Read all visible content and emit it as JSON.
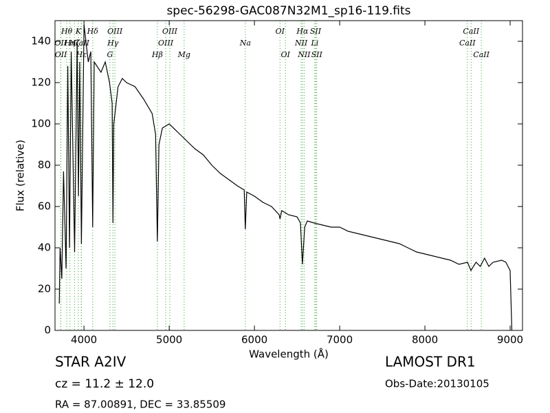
{
  "chart_data": {
    "type": "line",
    "title": "spec-56298-GAC087N32M1_sp16-119.fits",
    "x_label": "Wavelength (Å)",
    "y_label": "Flux (relative)",
    "color": "#000000",
    "line_color": "#2ca02c",
    "xlim": [
      3660,
      9145
    ],
    "ylim": [
      0,
      150
    ],
    "xticks": [
      4000,
      5000,
      6000,
      7000,
      8000,
      9000
    ],
    "yticks": [
      0,
      20,
      40,
      60,
      80,
      100,
      120,
      140
    ],
    "x": [
      3710,
      3720,
      3740,
      3760,
      3790,
      3810,
      3830,
      3850,
      3890,
      3920,
      3935,
      3950,
      3970,
      4000,
      4050,
      4080,
      4102,
      4120,
      4200,
      4250,
      4300,
      4330,
      4340,
      4350,
      4400,
      4450,
      4500,
      4600,
      4700,
      4800,
      4840,
      4861,
      4880,
      4920,
      5000,
      5100,
      5200,
      5300,
      5400,
      5500,
      5600,
      5700,
      5800,
      5880,
      5893,
      5910,
      6000,
      6100,
      6200,
      6290,
      6300,
      6320,
      6400,
      6500,
      6540,
      6563,
      6590,
      6620,
      6700,
      6800,
      6900,
      7000,
      7100,
      7200,
      7300,
      7400,
      7500,
      7600,
      7700,
      7800,
      7900,
      8000,
      8100,
      8200,
      8300,
      8400,
      8500,
      8540,
      8600,
      8650,
      8700,
      8750,
      8800,
      8900,
      8950,
      9000,
      9020
    ],
    "values": [
      13,
      40,
      25,
      77,
      30,
      128,
      40,
      135,
      38,
      140,
      65,
      130,
      42,
      148,
      130,
      135,
      50,
      130,
      125,
      130,
      120,
      110,
      52,
      100,
      118,
      122,
      120,
      118,
      112,
      105,
      95,
      43,
      90,
      98,
      100,
      96,
      92,
      88,
      85,
      80,
      76,
      73,
      70,
      68,
      49,
      67,
      65,
      62,
      60,
      56,
      54,
      58,
      56,
      55,
      52,
      32,
      50,
      53,
      52,
      51,
      50,
      50,
      48,
      47,
      46,
      45,
      44,
      43,
      42,
      40,
      38,
      37,
      36,
      35,
      34,
      32,
      33,
      29,
      33,
      31,
      35,
      31,
      33,
      34,
      33,
      29,
      0
    ],
    "lines": [
      [
        {
          "label": "Hθ",
          "x": 3798
        },
        {
          "label": "K",
          "x": 3934
        },
        {
          "label": "Hδ",
          "x": 4102
        },
        {
          "label": "OIII",
          "x": 4363
        },
        {
          "label": "OIII",
          "x": 5007
        },
        {
          "label": "OI",
          "x": 6300
        },
        {
          "label": "Hα",
          "x": 6563
        },
        {
          "label": "SII",
          "x": 6717
        },
        {
          "label": "CaII",
          "x": 8542
        }
      ],
      [
        {
          "label": "OII",
          "x": 3727
        },
        {
          "label": "Hη",
          "x": 3835
        },
        {
          "label": "Hζ",
          "x": 3889
        },
        {
          "label": "CaII",
          "x": 3968
        },
        {
          "label": "Hγ",
          "x": 4340
        },
        {
          "label": "OIII",
          "x": 4959
        },
        {
          "label": "Na",
          "x": 5893
        },
        {
          "label": "NII",
          "x": 6548
        },
        {
          "label": "Li",
          "x": 6708
        },
        {
          "label": "CaII",
          "x": 8498
        }
      ],
      [
        {
          "label": "OII",
          "x": 3729
        },
        {
          "label": "Hε",
          "x": 3970
        },
        {
          "label": "G",
          "x": 4304
        },
        {
          "label": "Hβ",
          "x": 4861
        },
        {
          "label": "Mg",
          "x": 5175
        },
        {
          "label": "OI",
          "x": 6364
        },
        {
          "label": "NII",
          "x": 6583
        },
        {
          "label": "SII",
          "x": 6731
        },
        {
          "label": "CaII",
          "x": 8662
        }
      ]
    ],
    "annotations": {
      "object": "STAR   A2IV",
      "cz": "cz = 11.2  ± 12.0",
      "coords": "RA = 87.00891, DEC = 33.85509",
      "survey": "LAMOST DR1",
      "date": "Obs-Date:20130105"
    }
  }
}
